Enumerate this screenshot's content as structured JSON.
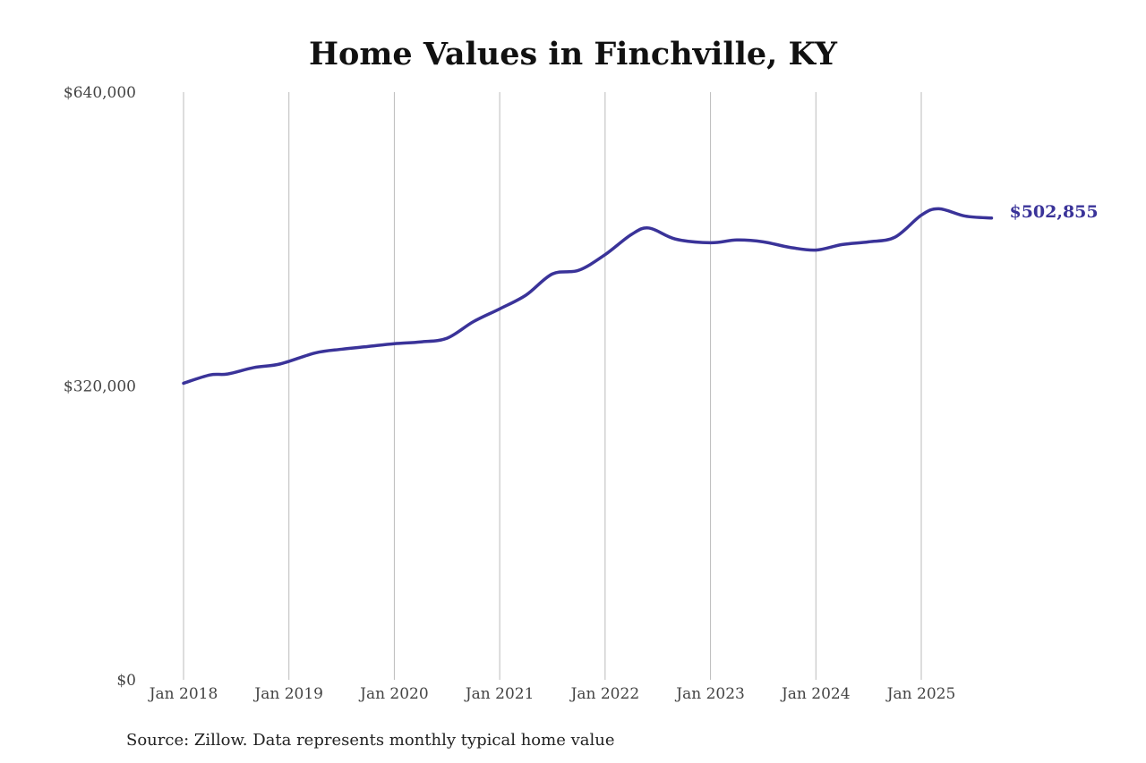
{
  "chart_data": {
    "type": "line",
    "title": "Home Values in Finchville, KY",
    "source": "Source: Zillow. Data represents monthly typical home value",
    "xlabel": "",
    "ylabel": "",
    "ylim": [
      0,
      640000
    ],
    "yticks": [
      0,
      320000,
      640000
    ],
    "ytick_labels": [
      "$0",
      "$320,000",
      "$640,000"
    ],
    "xticks": [
      "2018-01",
      "2019-01",
      "2020-01",
      "2021-01",
      "2022-01",
      "2023-01",
      "2024-01",
      "2025-01"
    ],
    "xtick_labels": [
      "Jan 2018",
      "Jan 2019",
      "Jan 2020",
      "Jan 2021",
      "Jan 2022",
      "Jan 2023",
      "Jan 2024",
      "Jan 2025"
    ],
    "grid": "vertical",
    "line_color": "#3a3399",
    "end_label": "$502,855",
    "series": [
      {
        "x": [
          "2018-01",
          "2018-04",
          "2018-06",
          "2018-09",
          "2018-12",
          "2019-04",
          "2019-07",
          "2019-10",
          "2020-01",
          "2020-04",
          "2020-07",
          "2020-10",
          "2021-01",
          "2021-04",
          "2021-07",
          "2021-10",
          "2022-01",
          "2022-04",
          "2022-06",
          "2022-09",
          "2023-01",
          "2023-04",
          "2023-07",
          "2023-10",
          "2024-01",
          "2024-04",
          "2024-07",
          "2024-10",
          "2025-01",
          "2025-03",
          "2025-06",
          "2025-09"
        ],
        "y": [
          323000,
          332000,
          333000,
          340000,
          344000,
          356000,
          360000,
          363000,
          366000,
          368000,
          372000,
          390000,
          404000,
          419000,
          442000,
          446000,
          463000,
          485000,
          492000,
          480000,
          476000,
          479000,
          477000,
          471000,
          468000,
          474000,
          477000,
          482000,
          506000,
          513000,
          505000,
          502855
        ]
      }
    ]
  }
}
